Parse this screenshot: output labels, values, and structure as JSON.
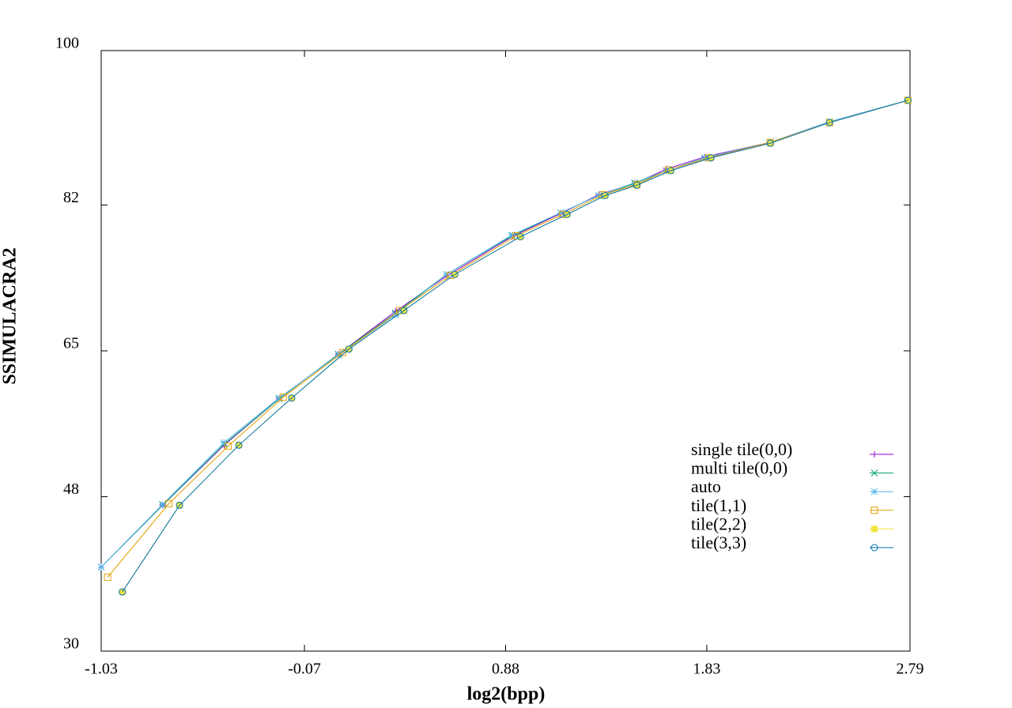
{
  "chart_data": {
    "type": "line",
    "x_label": "log2(bpp)",
    "y_label": "SSIMULACRA2",
    "xlim": [
      -1.03,
      2.79
    ],
    "xticks": [
      -1.03,
      -0.07,
      0.88,
      1.83,
      2.79
    ],
    "ylim": [
      30,
      100
    ],
    "yticks": [
      30,
      48,
      65,
      82,
      100
    ],
    "legend": "right",
    "series": [
      {
        "name": "single tile(0,0)",
        "color": "#9400d3",
        "marker": "plus",
        "x": [
          -1.03,
          -0.74,
          -0.45,
          -0.19,
          0.09,
          0.36,
          0.6,
          0.91,
          1.14,
          1.32,
          1.49,
          1.64,
          1.82,
          2.13,
          2.41,
          2.78
        ],
        "values": [
          39.8,
          47.0,
          54.0,
          59.4,
          64.6,
          69.6,
          73.7,
          78.3,
          81.0,
          83.2,
          84.5,
          86.2,
          87.6,
          89.3,
          91.7,
          94.2
        ]
      },
      {
        "name": "multi tile(0,0)",
        "color": "#009e73",
        "marker": "cross",
        "x": [
          -1.03,
          -0.74,
          -0.45,
          -0.19,
          0.09,
          0.36,
          0.6,
          0.91,
          1.14,
          1.32,
          1.49,
          1.64,
          1.82,
          2.13,
          2.41,
          2.78
        ],
        "values": [
          39.8,
          47.0,
          54.1,
          59.4,
          64.6,
          69.4,
          73.9,
          78.4,
          81.1,
          83.1,
          84.5,
          86.0,
          87.5,
          89.3,
          91.7,
          94.2
        ]
      },
      {
        "name": "auto",
        "color": "#56b4e9",
        "marker": "star",
        "x": [
          -1.03,
          -0.74,
          -0.45,
          -0.19,
          0.09,
          0.36,
          0.6,
          0.91,
          1.14,
          1.32,
          1.49,
          1.64,
          1.82,
          2.13,
          2.41,
          2.78
        ],
        "values": [
          39.8,
          47.1,
          54.3,
          59.5,
          64.5,
          69.2,
          73.9,
          78.5,
          81.1,
          83.1,
          84.6,
          86.0,
          87.5,
          89.3,
          91.7,
          94.2
        ]
      },
      {
        "name": "tile(1,1)",
        "color": "#e69f00",
        "marker": "square",
        "x": [
          -1.0,
          -0.71,
          -0.43,
          -0.17,
          0.11,
          0.38,
          0.62,
          0.93,
          1.15,
          1.34,
          1.5,
          1.65,
          1.84,
          2.13,
          2.41,
          2.78
        ],
        "values": [
          38.6,
          47.2,
          53.9,
          59.6,
          64.8,
          69.7,
          73.8,
          78.4,
          80.9,
          83.2,
          84.4,
          86.1,
          87.5,
          89.3,
          91.6,
          94.2
        ]
      },
      {
        "name": "tile(2,2)",
        "color": "#f0e442",
        "marker": "filled-square",
        "x": [
          -0.93,
          -0.66,
          -0.38,
          -0.13,
          0.14,
          0.4,
          0.64,
          0.95,
          1.17,
          1.35,
          1.5,
          1.66,
          1.85,
          2.13,
          2.41,
          2.78
        ],
        "values": [
          36.9,
          47.0,
          54.0,
          59.5,
          65.2,
          69.7,
          73.9,
          78.3,
          80.9,
          83.1,
          84.3,
          86.0,
          87.5,
          89.2,
          91.6,
          94.2
        ]
      },
      {
        "name": "tile(3,3)",
        "color": "#0072b2",
        "marker": "circle",
        "x": [
          -0.93,
          -0.66,
          -0.38,
          -0.13,
          0.14,
          0.4,
          0.64,
          0.95,
          1.17,
          1.35,
          1.5,
          1.66,
          1.85,
          2.13,
          2.41,
          2.78
        ],
        "values": [
          36.9,
          47.0,
          54.0,
          59.5,
          65.2,
          69.7,
          73.9,
          78.3,
          80.9,
          83.1,
          84.3,
          86.0,
          87.5,
          89.2,
          91.6,
          94.2
        ]
      }
    ]
  }
}
